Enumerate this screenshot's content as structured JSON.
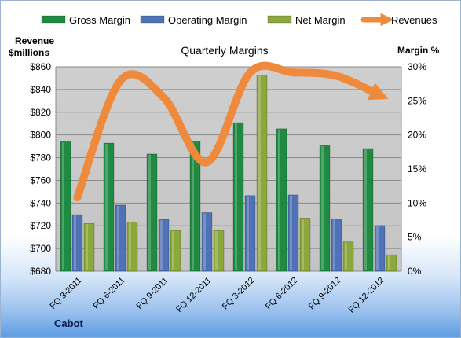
{
  "chart_data": {
    "type": "bar",
    "title": "Quarterly Margins",
    "footer": "Cabot",
    "y_left_label": [
      "Revenue",
      "$millions"
    ],
    "y_right_label": "Margin %",
    "categories": [
      "FQ 3-2011",
      "FQ 6-2011",
      "FQ 9-2011",
      "FQ 12-2011",
      "FQ 3-2012",
      "FQ 6-2012",
      "FQ 9-2012",
      "FQ 12-2012"
    ],
    "y_left": {
      "min": 680,
      "max": 860,
      "step": 20,
      "prefix": "$"
    },
    "y_right": {
      "min": 0,
      "max": 30,
      "step": 5,
      "suffix": "%"
    },
    "series": [
      {
        "name": "Gross Margin",
        "type": "bar",
        "axis": "right",
        "color": "#1f8a42",
        "values": [
          19.0,
          18.8,
          17.2,
          19.0,
          21.8,
          20.9,
          18.5,
          18.0
        ]
      },
      {
        "name": "Operating Margin",
        "type": "bar",
        "axis": "right",
        "color": "#4f72b7",
        "values": [
          8.3,
          9.7,
          7.6,
          8.6,
          11.1,
          11.2,
          7.7,
          6.7
        ]
      },
      {
        "name": "Net Margin",
        "type": "bar",
        "axis": "right",
        "color": "#8ba83c",
        "values": [
          7.0,
          7.2,
          6.0,
          6.0,
          28.8,
          7.8,
          4.3,
          2.4
        ]
      },
      {
        "name": "Revenues",
        "type": "line",
        "axis": "left",
        "color": "#ef8a3d",
        "values": [
          745,
          848,
          833,
          776,
          855,
          855,
          852,
          835
        ]
      }
    ],
    "grid": true,
    "legend": "top"
  }
}
